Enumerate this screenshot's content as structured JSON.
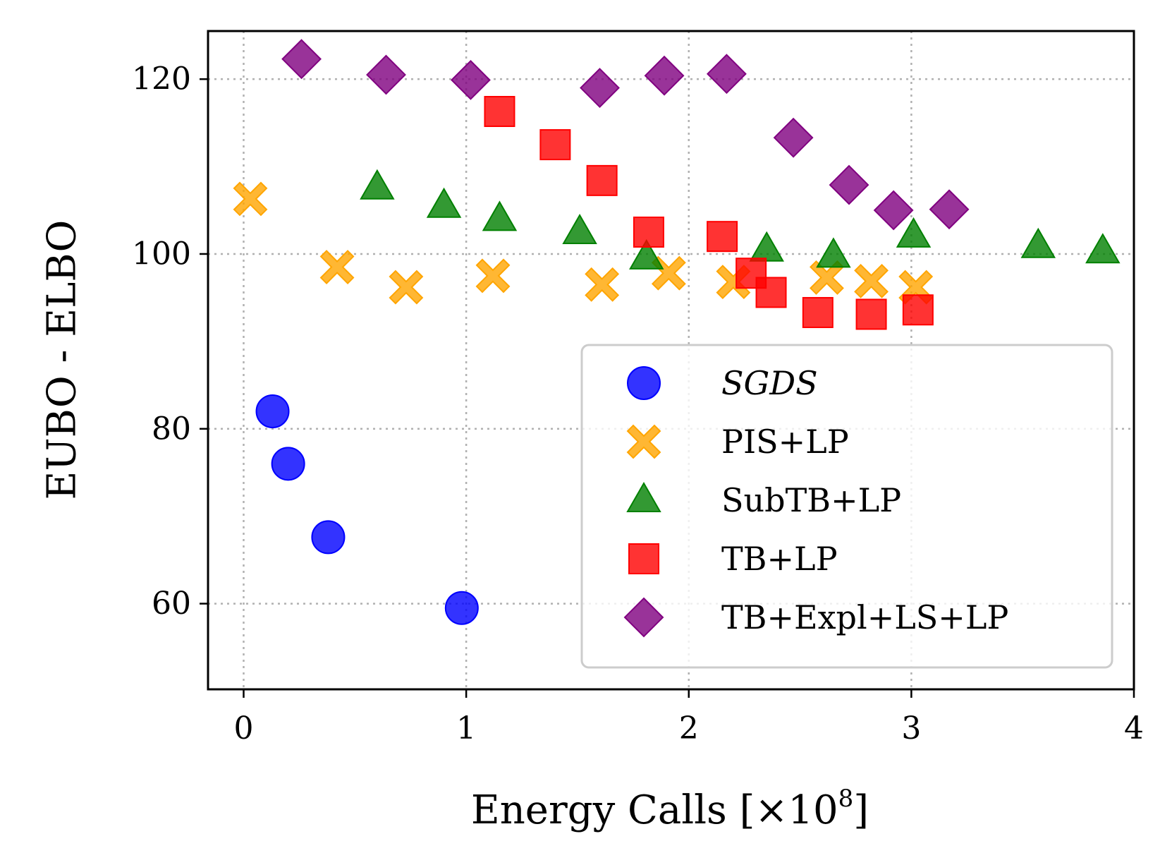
{
  "chart_data": {
    "type": "scatter",
    "title": "",
    "xlabel": "Energy Calls [×10",
    "xlabel_exponent": "8",
    "xlabel_suffix": "]",
    "ylabel": "EUBO - ELBO",
    "xlim": [
      -0.16,
      4.0
    ],
    "ylim": [
      50.2,
      125.5
    ],
    "xticks": [
      0,
      1,
      2,
      3,
      4
    ],
    "xtick_labels": [
      "0",
      "1",
      "2",
      "3",
      "4"
    ],
    "yticks": [
      60,
      80,
      100,
      120
    ],
    "ytick_labels": [
      "60",
      "80",
      "100",
      "120"
    ],
    "grid": true,
    "legend_position": "lower-right",
    "series": [
      {
        "name": "SGDS",
        "italic": true,
        "marker": "circle",
        "color": "#0000ff",
        "x": [
          0.13,
          0.2,
          0.38,
          0.98
        ],
        "y": [
          82.0,
          76.0,
          67.6,
          59.5
        ]
      },
      {
        "name": "PIS+LP",
        "marker": "x",
        "color": "#ffa500",
        "x": [
          0.03,
          0.42,
          0.73,
          1.12,
          1.61,
          1.91,
          2.2,
          2.62,
          2.82,
          3.02
        ],
        "y": [
          106.3,
          98.5,
          96.2,
          97.5,
          96.5,
          97.8,
          96.8,
          97.3,
          96.9,
          96.2
        ]
      },
      {
        "name": "SubTB+LP",
        "marker": "triangle",
        "color": "#008000",
        "x": [
          0.6,
          0.9,
          1.15,
          1.51,
          1.81,
          2.35,
          2.65,
          3.01,
          3.57,
          3.86
        ],
        "y": [
          107.6,
          105.5,
          104.0,
          102.5,
          99.6,
          100.5,
          99.8,
          102.1,
          100.9,
          100.3
        ]
      },
      {
        "name": "TB+LP",
        "marker": "square",
        "color": "#ff0000",
        "x": [
          1.15,
          1.4,
          1.61,
          1.82,
          2.15,
          2.28,
          2.37,
          2.58,
          2.82,
          3.03
        ],
        "y": [
          116.3,
          112.5,
          108.4,
          102.5,
          102.0,
          97.8,
          95.6,
          93.3,
          93.1,
          93.6
        ]
      },
      {
        "name": "TB+Expl+LS+LP",
        "marker": "diamond",
        "color": "#800080",
        "x": [
          0.26,
          0.64,
          1.02,
          1.6,
          1.89,
          2.17,
          2.47,
          2.72,
          2.92,
          3.17
        ],
        "y": [
          122.3,
          120.5,
          119.9,
          119.0,
          120.4,
          120.6,
          113.3,
          107.9,
          105.0,
          105.1
        ]
      }
    ]
  }
}
